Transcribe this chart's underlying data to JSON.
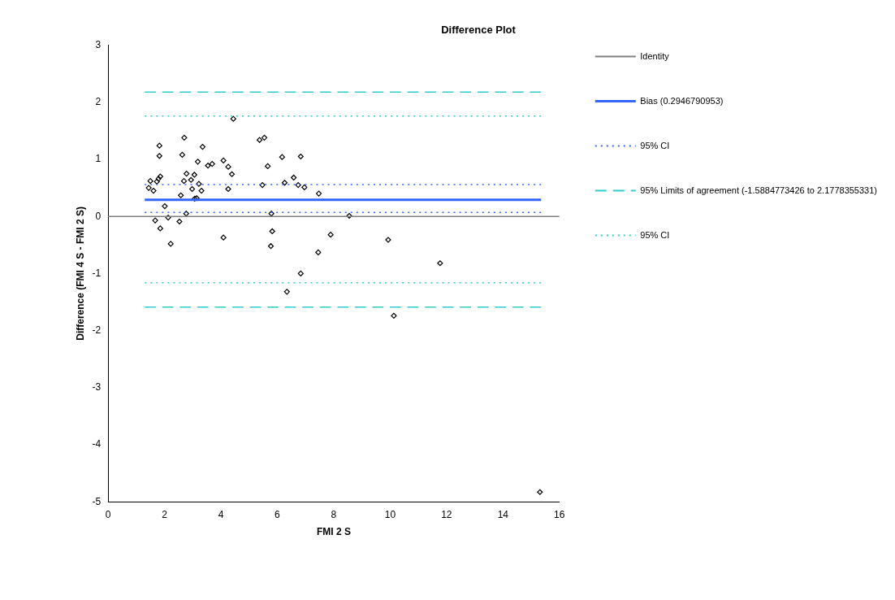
{
  "chart_data": {
    "type": "scatter",
    "title": "Difference Plot",
    "xlabel": "FMI 2 S",
    "ylabel": "Difference (FMI 4 S - FMI 2 S)",
    "xlim": [
      0,
      16
    ],
    "xticks": [
      0,
      2,
      4,
      6,
      8,
      10,
      12,
      14,
      16
    ],
    "ylim": [
      -5,
      3
    ],
    "yticks": [
      -5,
      -4,
      -3,
      -2,
      -1,
      0,
      1,
      2,
      3
    ],
    "grid": false,
    "legend": "right",
    "series": [
      {
        "type": "line",
        "name": "Identity",
        "color": "#808080",
        "line_style": "solid",
        "marker": "none",
        "x": [
          0,
          16
        ],
        "values": [
          0,
          0
        ]
      },
      {
        "type": "line",
        "name": "Bias (0.2946790953)",
        "color": "#3366ff",
        "line_style": "solid",
        "marker": "none",
        "x": [
          1.3,
          15.35
        ],
        "values": [
          0.29,
          0.29
        ]
      },
      {
        "type": "line",
        "name": "95% CI",
        "color": "#3366ff",
        "line_style": "dotted",
        "marker": "none",
        "x": [
          1.3,
          15.35
        ],
        "values": [
          0.56,
          0.56
        ]
      },
      {
        "type": "line",
        "color": "#3366ff",
        "line_style": "dotted",
        "marker": "none",
        "x": [
          1.3,
          15.35
        ],
        "values": [
          0.07,
          0.07
        ]
      },
      {
        "type": "line",
        "name": "95% Limits of agreement (-1.5884773426 to 2.1778355331)",
        "color": "#33cccc",
        "line_style": "dashed",
        "marker": "none",
        "x": [
          1.3,
          15.35
        ],
        "values": [
          2.18,
          2.18
        ]
      },
      {
        "type": "line",
        "color": "#33cccc",
        "line_style": "dashed",
        "marker": "none",
        "x": [
          1.3,
          15.35
        ],
        "values": [
          -1.59,
          -1.59
        ]
      },
      {
        "type": "line",
        "name": "95% CI",
        "color": "#33cccc",
        "line_style": "dotted",
        "marker": "none",
        "x": [
          1.3,
          15.35
        ],
        "values": [
          1.76,
          1.76
        ]
      },
      {
        "type": "line",
        "color": "#33cccc",
        "line_style": "dotted",
        "marker": "none",
        "x": [
          1.3,
          15.35
        ],
        "values": [
          -1.16,
          -1.16
        ]
      },
      {
        "color": "#000000",
        "marker": "diamond",
        "x": [
          4.44,
          2.7,
          1.82,
          3.35,
          2.63,
          1.82,
          5.37,
          5.54,
          3.18,
          3.54,
          3.69,
          4.09,
          4.26,
          4.39,
          5.66,
          2.78,
          3.06,
          1.85,
          1.79,
          1.73,
          1.5,
          1.44,
          1.61,
          2.69,
          2.94,
          3.22,
          2.98,
          3.31,
          4.26,
          5.47,
          2.58,
          3.07,
          3.14,
          2.01,
          2.77,
          1.67,
          2.13,
          2.53,
          1.85,
          2.22,
          4.09,
          5.79,
          5.82,
          5.77,
          6.17,
          6.83,
          6.58,
          6.26,
          6.74,
          6.96,
          7.47,
          8.55,
          7.89,
          7.45,
          6.83,
          6.34,
          9.93,
          11.77,
          10.13,
          15.31
        ],
        "values": [
          1.71,
          1.38,
          1.24,
          1.22,
          1.08,
          1.06,
          1.34,
          1.38,
          0.96,
          0.89,
          0.92,
          0.98,
          0.87,
          0.74,
          0.88,
          0.75,
          0.73,
          0.7,
          0.66,
          0.61,
          0.62,
          0.5,
          0.45,
          0.62,
          0.64,
          0.57,
          0.48,
          0.45,
          0.48,
          0.55,
          0.37,
          0.31,
          0.32,
          0.18,
          0.05,
          -0.07,
          -0.02,
          -0.09,
          -0.21,
          -0.48,
          -0.37,
          0.05,
          -0.26,
          -0.52,
          1.04,
          1.05,
          0.68,
          0.59,
          0.55,
          0.51,
          0.4,
          0.01,
          -0.32,
          -0.63,
          -1.0,
          -1.32,
          -0.41,
          -0.82,
          -1.74,
          -4.83
        ]
      }
    ]
  }
}
